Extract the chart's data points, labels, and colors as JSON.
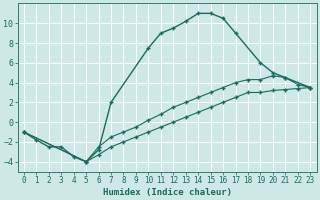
{
  "xlabel": "Humidex (Indice chaleur)",
  "bg_color": "#cde8e5",
  "line_color": "#1a6b5e",
  "grid_color": "#b8d8d5",
  "grid_color_white": "#ffffff",
  "series1_x": [
    0,
    1,
    2,
    3,
    4,
    5,
    6,
    7,
    10,
    11,
    12,
    13,
    14,
    15,
    16,
    17,
    19,
    20,
    21,
    23
  ],
  "series1_y": [
    -1,
    -1.8,
    -2.5,
    -2.5,
    -3.5,
    -4,
    -2.8,
    2.0,
    7.5,
    9.0,
    9.5,
    10.2,
    11.0,
    11.0,
    10.5,
    9.0,
    6.0,
    5.0,
    4.5,
    3.5
  ],
  "series2_x": [
    0,
    5,
    6,
    7,
    8,
    9,
    10,
    11,
    12,
    13,
    14,
    15,
    16,
    17,
    18,
    19,
    20,
    21,
    22,
    23
  ],
  "series2_y": [
    -1.0,
    -4.0,
    -3.3,
    -2.5,
    -2.0,
    -1.5,
    -1.0,
    -0.5,
    0.0,
    0.5,
    1.0,
    1.5,
    2.0,
    2.5,
    3.0,
    3.0,
    3.2,
    3.3,
    3.4,
    3.5
  ],
  "series3_x": [
    0,
    5,
    6,
    7,
    8,
    9,
    10,
    11,
    12,
    13,
    14,
    15,
    16,
    17,
    18,
    19,
    20,
    21,
    22,
    23
  ],
  "series3_y": [
    -1.0,
    -4.0,
    -2.5,
    -1.5,
    -1.0,
    -0.5,
    0.2,
    0.8,
    1.5,
    2.0,
    2.5,
    3.0,
    3.5,
    4.0,
    4.3,
    4.3,
    4.7,
    4.5,
    3.8,
    3.5
  ],
  "xlim": [
    -0.5,
    23.5
  ],
  "ylim": [
    -5.0,
    12.0
  ],
  "xticks": [
    0,
    1,
    2,
    3,
    4,
    5,
    6,
    7,
    8,
    9,
    10,
    11,
    12,
    13,
    14,
    15,
    16,
    17,
    18,
    19,
    20,
    21,
    22,
    23
  ],
  "yticks": [
    -4,
    -2,
    0,
    2,
    4,
    6,
    8,
    10
  ],
  "figsize": [
    3.2,
    2.0
  ],
  "dpi": 100
}
